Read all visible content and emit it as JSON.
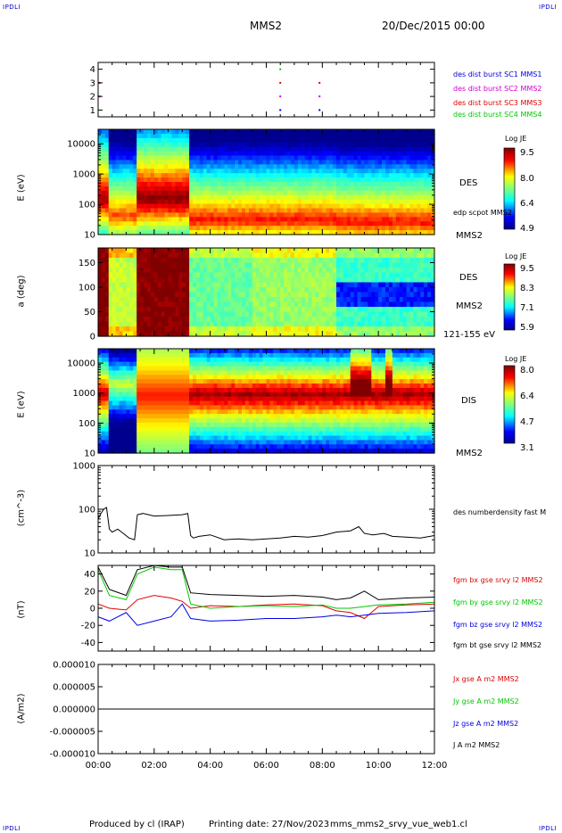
{
  "header": {
    "corner_left_top": "IPDLI",
    "corner_right_top": "IPDLI",
    "spacecraft": "MMS2",
    "date": "20/Dec/2015 00:00",
    "corner_left_bottom": "IPDLI",
    "corner_right_bottom": "IPDLI"
  },
  "footer": {
    "produced": "Produced by cl (IRAP)",
    "printing": "Printing date: 27/Nov/2023",
    "file": "mms_mms2_srvy_vue_web1.cl"
  },
  "colors": {
    "black": "#000000",
    "red": "#e00000",
    "green": "#00c800",
    "blue": "#0000e0",
    "magenta": "#d000d0"
  },
  "x_axis": {
    "ticks": [
      "00:00",
      "02:00",
      "04:00",
      "06:00",
      "08:00",
      "10:00",
      "12:00"
    ],
    "range_hours": [
      0,
      12
    ]
  },
  "panels": {
    "burst": {
      "yticks": [
        "4",
        "3",
        "2",
        "1"
      ],
      "legend": [
        "des dist burst SC1 MMS1",
        "des dist burst SC2 MMS2",
        "des dist burst SC3 MMS3",
        "des dist burst SC4 MMS4"
      ]
    },
    "des_energy": {
      "ylabel": "E (eV)",
      "yticks": [
        "10000",
        "1000",
        "100",
        "10"
      ],
      "label1": "DES",
      "label2": "edp scpot MMS2",
      "label3": "MMS2",
      "colorbar": {
        "title": "Log JE",
        "ticks": [
          "9.5",
          "8.0",
          "6.4",
          "4.9"
        ]
      }
    },
    "des_pitch": {
      "ylabel": "a (deg)",
      "yticks": [
        "150",
        "100",
        "50",
        "0"
      ],
      "label1": "DES",
      "label2": "MMS2",
      "label3": "121-155 eV",
      "colorbar": {
        "title": "Log JE",
        "ticks": [
          "9.5",
          "8.3",
          "7.1",
          "5.9"
        ]
      }
    },
    "dis_energy": {
      "ylabel": "E (eV)",
      "yticks": [
        "10000",
        "1000",
        "100",
        "10"
      ],
      "label1": "DIS",
      "label2": "MMS2",
      "colorbar": {
        "title": "Log JE",
        "ticks": [
          "8.0",
          "6.4",
          "4.7",
          "3.1"
        ]
      }
    },
    "density": {
      "ylabel": "(cm^-3)",
      "yticks": [
        "1000",
        "100",
        "10"
      ],
      "legend": "des numberdensity fast M"
    },
    "bfield": {
      "ylabel": "(nT)",
      "yticks": [
        "40",
        "20",
        "0",
        "-20",
        "-40"
      ],
      "legend": [
        "fgm bx gse srvy l2 MMS2",
        "fgm by gse srvy l2 MMS2",
        "fgm bz gse srvy l2 MMS2",
        "fgm bt gse srvy l2 MMS2"
      ]
    },
    "current": {
      "ylabel": "(A/m2)",
      "yticks": [
        "0.000010",
        "0.000005",
        "0.000000",
        "-0.000005",
        "-0.000010"
      ],
      "legend": [
        "Jx gse A m2 MMS2",
        "Jy gse A m2 MMS2",
        "Jz gse A m2 MMS2",
        "J A m2 MMS2"
      ]
    }
  },
  "chart_data": [
    {
      "type": "scatter",
      "title": "",
      "ylim": [
        0.5,
        4.5
      ],
      "series": [
        {
          "name": "des dist burst SC1 MMS1",
          "x": [
            6.5,
            7.9
          ],
          "y": [
            1,
            1
          ]
        },
        {
          "name": "des dist burst SC2 MMS2",
          "x": [
            0.05,
            6.5,
            7.9
          ],
          "y": [
            2,
            2,
            2
          ]
        },
        {
          "name": "des dist burst SC3 MMS3",
          "x": [
            0.05,
            6.5,
            7.9
          ],
          "y": [
            3,
            3,
            3
          ]
        },
        {
          "name": "des dist burst SC4 MMS4",
          "x": [
            6.5
          ],
          "y": [
            4
          ]
        }
      ]
    },
    {
      "type": "heatmap",
      "ylabel": "E (eV)",
      "ylim": [
        10,
        30000
      ],
      "log_y": true,
      "colorbar": {
        "label": "Log JE",
        "range": [
          4.9,
          9.5
        ]
      },
      "segments": [
        {
          "x": [
            0.0,
            0.4
          ],
          "peak_energy_eV": 150,
          "level": 9.3
        },
        {
          "x": [
            0.4,
            1.35
          ],
          "peak_energy_eV": 40,
          "level": 8.6
        },
        {
          "x": [
            1.35,
            3.3
          ],
          "peak_energy_eV": 150,
          "level": 9.5
        },
        {
          "x": [
            3.3,
            8.5
          ],
          "peak_energy_eV": 30,
          "level": 8.8
        },
        {
          "x": [
            8.5,
            12.0
          ],
          "peak_energy_eV": 25,
          "level": 8.8
        }
      ]
    },
    {
      "type": "heatmap",
      "ylabel": "a (deg)",
      "ylim": [
        0,
        180
      ],
      "colorbar": {
        "label": "Log JE",
        "range": [
          5.9,
          9.5
        ]
      },
      "segments": [
        {
          "x": [
            0.0,
            0.4
          ],
          "level": 9.5
        },
        {
          "x": [
            0.4,
            1.35
          ],
          "level": 8.0
        },
        {
          "x": [
            1.35,
            3.3
          ],
          "level": 9.5
        },
        {
          "x": [
            3.3,
            5.5
          ],
          "level": 7.6
        },
        {
          "x": [
            5.5,
            8.5
          ],
          "level": 7.8
        },
        {
          "x": [
            8.5,
            12.0
          ],
          "level": 7.4
        }
      ]
    },
    {
      "type": "heatmap",
      "ylabel": "E (eV)",
      "ylim": [
        10,
        30000
      ],
      "log_y": true,
      "colorbar": {
        "label": "Log JE",
        "range": [
          3.1,
          8.0
        ]
      },
      "segments": [
        {
          "x": [
            0.0,
            0.4
          ],
          "peak_energy_eV": 1000,
          "level": 7.6
        },
        {
          "x": [
            0.4,
            1.35
          ],
          "peak_energy_eV": 2000,
          "level": 6.0
        },
        {
          "x": [
            1.35,
            3.3
          ],
          "peak_energy_eV": 800,
          "level": 7.2
        },
        {
          "x": [
            3.3,
            12.0
          ],
          "peak_energy_eV": 900,
          "level": 7.8
        }
      ]
    },
    {
      "type": "line",
      "ylabel": "(cm^-3)",
      "ylim": [
        10,
        1000
      ],
      "log_y": true,
      "series": [
        {
          "name": "des numberdensity fast M",
          "x": [
            0.0,
            0.1,
            0.2,
            0.3,
            0.4,
            0.5,
            0.7,
            0.9,
            1.1,
            1.3,
            1.4,
            1.6,
            2.0,
            2.5,
            3.0,
            3.2,
            3.3,
            3.4,
            3.6,
            4.0,
            4.5,
            5.0,
            5.5,
            6.0,
            6.5,
            7.0,
            7.5,
            8.0,
            8.5,
            9.0,
            9.3,
            9.5,
            9.8,
            10.2,
            10.5,
            11.0,
            11.5,
            12.0
          ],
          "y": [
            60,
            80,
            100,
            110,
            35,
            30,
            35,
            28,
            22,
            20,
            75,
            80,
            70,
            72,
            75,
            80,
            25,
            22,
            24,
            26,
            20,
            21,
            20,
            21,
            22,
            24,
            23,
            25,
            30,
            32,
            40,
            28,
            26,
            28,
            24,
            23,
            22,
            25
          ]
        }
      ]
    },
    {
      "type": "line",
      "ylabel": "(nT)",
      "ylim": [
        -50,
        50
      ],
      "series": [
        {
          "name": "fgm bx gse srvy l2 MMS2",
          "x": [
            0.0,
            0.4,
            1.0,
            1.4,
            2.0,
            2.6,
            3.0,
            3.3,
            4.0,
            5.0,
            6.0,
            7.0,
            8.0,
            8.5,
            9.0,
            9.5,
            10.0,
            11.0,
            12.0
          ],
          "y": [
            5,
            0,
            -2,
            10,
            15,
            12,
            8,
            0,
            3,
            2,
            4,
            5,
            3,
            -3,
            -5,
            -12,
            2,
            4,
            5
          ]
        },
        {
          "name": "fgm by gse srvy l2 MMS2",
          "x": [
            0.0,
            0.4,
            1.0,
            1.4,
            2.0,
            2.6,
            3.0,
            3.3,
            4.0,
            5.0,
            6.0,
            7.0,
            8.0,
            8.5,
            9.0,
            9.5,
            10.0,
            11.0,
            12.0
          ],
          "y": [
            45,
            15,
            10,
            40,
            48,
            45,
            45,
            5,
            0,
            2,
            3,
            2,
            4,
            0,
            0,
            2,
            4,
            5,
            7
          ]
        },
        {
          "name": "fgm bz gse srvy l2 MMS2",
          "x": [
            0.0,
            0.4,
            1.0,
            1.4,
            2.0,
            2.6,
            3.0,
            3.3,
            4.0,
            5.0,
            6.0,
            7.0,
            8.0,
            8.5,
            9.0,
            9.5,
            10.0,
            11.0,
            12.0
          ],
          "y": [
            -10,
            -15,
            -5,
            -20,
            -15,
            -10,
            5,
            -12,
            -15,
            -14,
            -12,
            -12,
            -10,
            -8,
            -10,
            -8,
            -6,
            -5,
            -3
          ]
        },
        {
          "name": "fgm bt gse srvy l2 MMS2",
          "x": [
            0.0,
            0.4,
            1.0,
            1.4,
            2.0,
            2.6,
            3.0,
            3.3,
            4.0,
            5.0,
            6.0,
            7.0,
            8.0,
            8.5,
            9.0,
            9.5,
            10.0,
            11.0,
            12.0
          ],
          "y": [
            48,
            22,
            15,
            45,
            50,
            48,
            48,
            18,
            16,
            15,
            14,
            15,
            13,
            10,
            12,
            20,
            10,
            12,
            13
          ]
        }
      ]
    },
    {
      "type": "line",
      "ylabel": "(A/m2)",
      "ylim": [
        -1e-05,
        1e-05
      ],
      "series": [
        {
          "name": "Jx gse A m2 MMS2",
          "x": [
            0.0,
            12.0
          ],
          "y": [
            0.0,
            0.0
          ]
        },
        {
          "name": "Jy gse A m2 MMS2",
          "x": [
            0.0,
            12.0
          ],
          "y": [
            0.0,
            0.0
          ]
        },
        {
          "name": "Jz gse A m2 MMS2",
          "x": [
            0.0,
            12.0
          ],
          "y": [
            0.0,
            0.0
          ]
        },
        {
          "name": "J A m2 MMS2",
          "x": [
            0.0,
            12.0
          ],
          "y": [
            0.0,
            0.0
          ]
        }
      ]
    }
  ]
}
